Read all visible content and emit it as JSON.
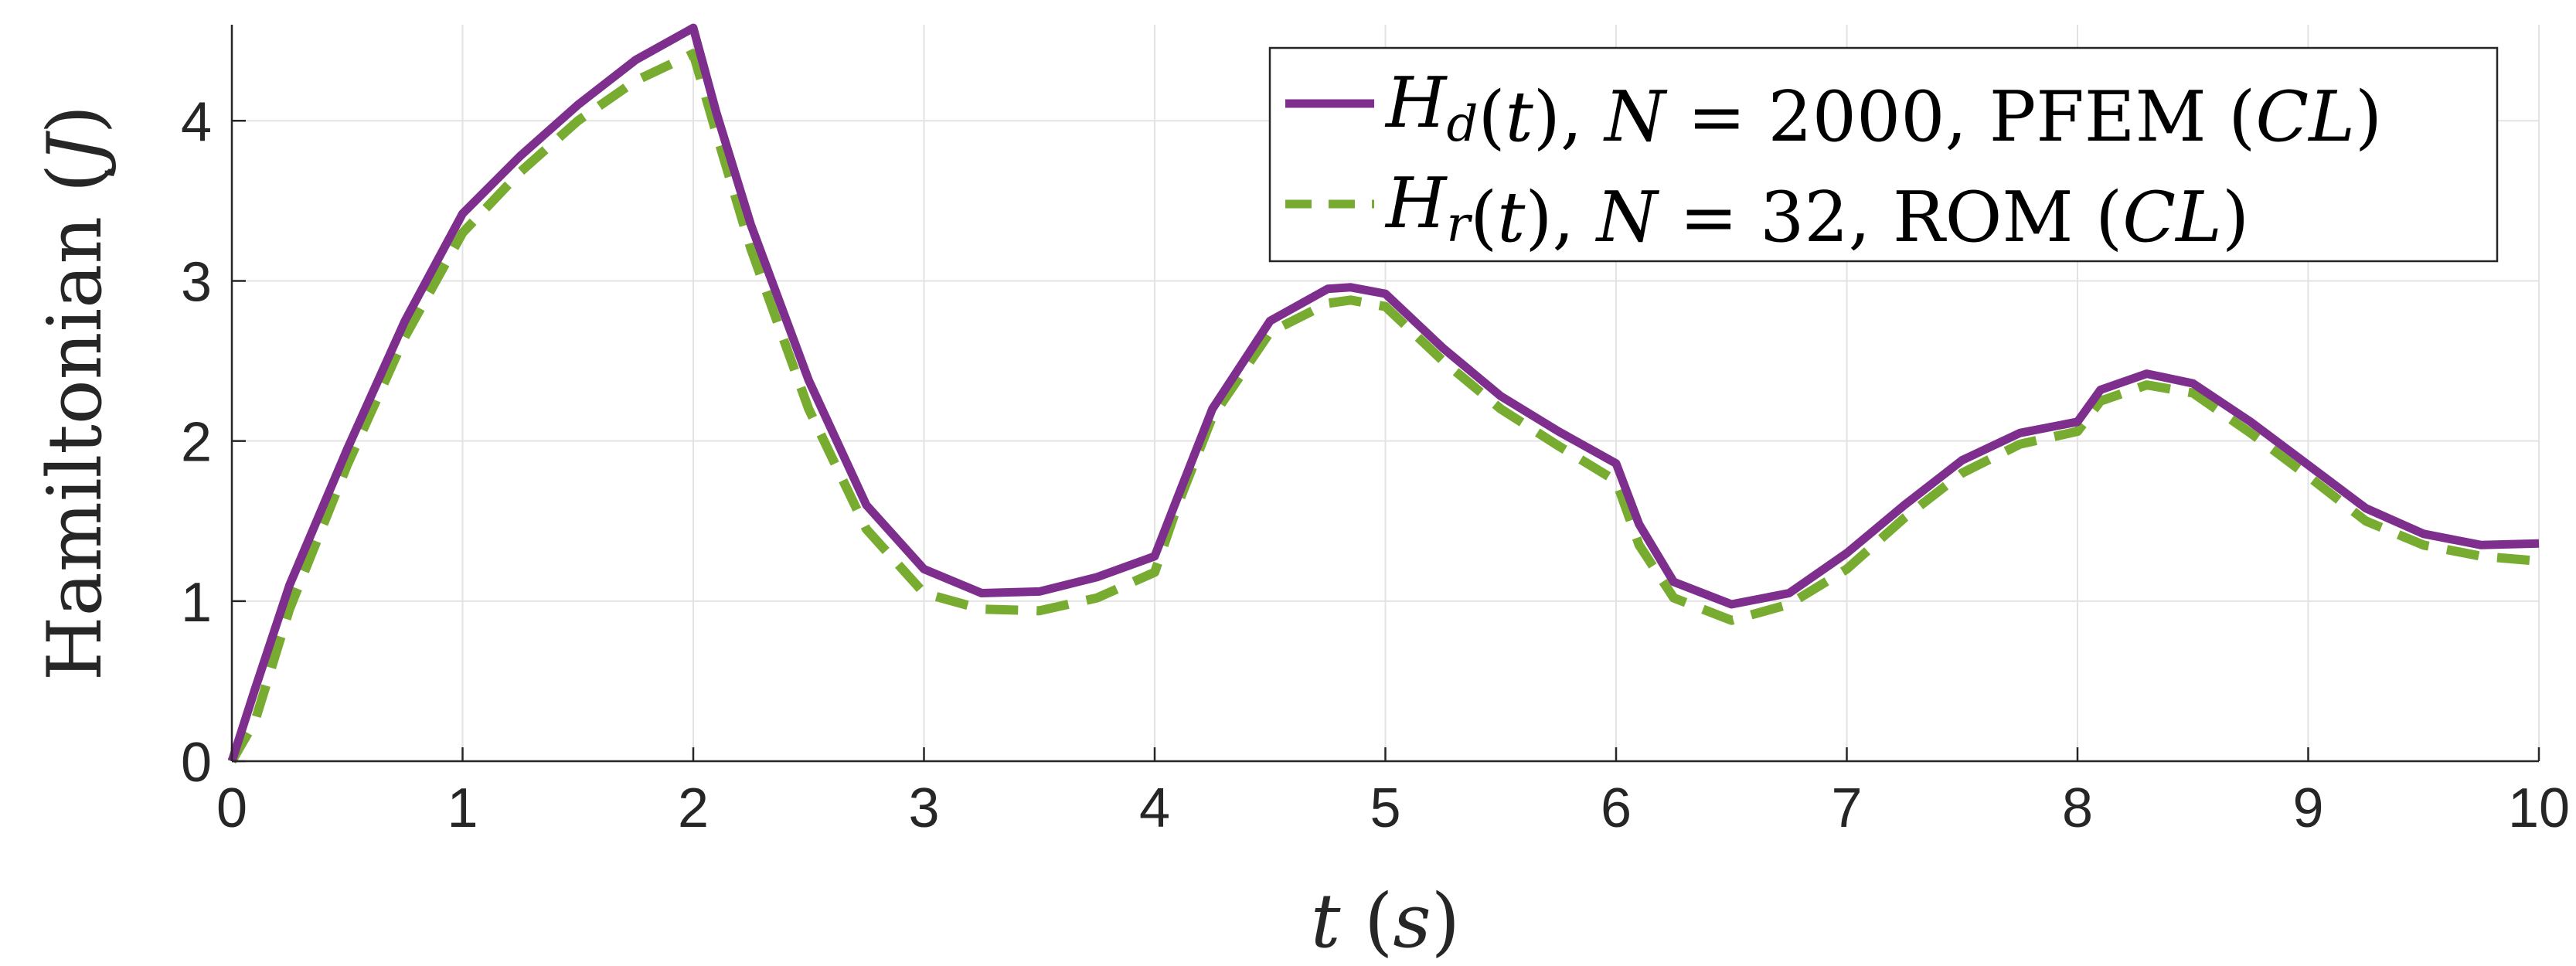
{
  "chart_data": {
    "type": "line",
    "xlabel_parts": [
      "t",
      " (",
      "s",
      ")"
    ],
    "ylabel_parts": [
      "Hamiltonian ",
      "(",
      "J",
      ")"
    ],
    "xlim": [
      0,
      10
    ],
    "ylim": [
      0,
      4.6
    ],
    "xticks": [
      0,
      1,
      2,
      3,
      4,
      5,
      6,
      7,
      8,
      9,
      10
    ],
    "yticks": [
      0,
      1,
      2,
      3,
      4
    ],
    "grid": true,
    "legend_position": "top-right",
    "series": [
      {
        "legend_parts": [
          {
            "t": "H",
            "i": true
          },
          {
            "t": "d",
            "i": true,
            "sub": true
          },
          {
            "t": "(",
            "i": false
          },
          {
            "t": "t",
            "i": true
          },
          {
            "t": "), ",
            "i": false
          },
          {
            "t": "N",
            "i": true
          },
          {
            "t": " = 2000, PFEM ",
            "i": false
          },
          {
            "t": "(",
            "i": false
          },
          {
            "t": "CL",
            "i": true
          },
          {
            "t": ")",
            "i": false
          }
        ],
        "color": "#7e2f8e",
        "style": "solid",
        "x": [
          0,
          0.1,
          0.25,
          0.5,
          0.75,
          1.0,
          1.25,
          1.5,
          1.75,
          2.0,
          2.1,
          2.25,
          2.5,
          2.75,
          3.0,
          3.25,
          3.5,
          3.75,
          4.0,
          4.1,
          4.25,
          4.5,
          4.75,
          4.85,
          5.0,
          5.25,
          5.5,
          5.75,
          6.0,
          6.1,
          6.25,
          6.5,
          6.75,
          7.0,
          7.25,
          7.5,
          7.75,
          8.0,
          8.1,
          8.3,
          8.5,
          8.75,
          9.0,
          9.25,
          9.5,
          9.75,
          10.0
        ],
        "y": [
          0.0,
          0.45,
          1.1,
          1.95,
          2.75,
          3.42,
          3.78,
          4.1,
          4.38,
          4.58,
          4.05,
          3.35,
          2.38,
          1.6,
          1.2,
          1.05,
          1.06,
          1.15,
          1.28,
          1.65,
          2.2,
          2.75,
          2.95,
          2.96,
          2.92,
          2.58,
          2.28,
          2.06,
          1.86,
          1.48,
          1.12,
          0.98,
          1.05,
          1.3,
          1.6,
          1.88,
          2.05,
          2.12,
          2.32,
          2.42,
          2.36,
          2.12,
          1.85,
          1.58,
          1.42,
          1.35,
          1.36
        ]
      },
      {
        "legend_parts": [
          {
            "t": "H",
            "i": true
          },
          {
            "t": "r",
            "i": true,
            "sub": true
          },
          {
            "t": "(",
            "i": false
          },
          {
            "t": "t",
            "i": true
          },
          {
            "t": "), ",
            "i": false
          },
          {
            "t": "N",
            "i": true
          },
          {
            "t": " = 32,   ROM   ",
            "i": false
          },
          {
            "t": "(",
            "i": false
          },
          {
            "t": "CL",
            "i": true
          },
          {
            "t": ")",
            "i": false
          }
        ],
        "color": "#77ac30",
        "style": "dashed",
        "x": [
          0,
          0.1,
          0.25,
          0.5,
          0.75,
          1.0,
          1.25,
          1.5,
          1.75,
          2.0,
          2.1,
          2.25,
          2.5,
          2.75,
          3.0,
          3.25,
          3.5,
          3.75,
          4.0,
          4.1,
          4.25,
          4.5,
          4.75,
          4.85,
          5.0,
          5.25,
          5.5,
          5.75,
          6.0,
          6.1,
          6.25,
          6.5,
          6.75,
          7.0,
          7.25,
          7.5,
          7.75,
          8.0,
          8.1,
          8.3,
          8.5,
          8.75,
          9.0,
          9.25,
          9.5,
          9.75,
          10.0
        ],
        "y": [
          0.0,
          0.25,
          0.95,
          1.85,
          2.65,
          3.3,
          3.68,
          4.0,
          4.25,
          4.42,
          3.92,
          3.2,
          2.2,
          1.45,
          1.05,
          0.95,
          0.94,
          1.02,
          1.18,
          1.6,
          2.15,
          2.68,
          2.86,
          2.88,
          2.84,
          2.5,
          2.2,
          1.97,
          1.75,
          1.35,
          1.02,
          0.88,
          0.98,
          1.2,
          1.52,
          1.8,
          1.98,
          2.06,
          2.25,
          2.35,
          2.3,
          2.05,
          1.78,
          1.5,
          1.35,
          1.28,
          1.25
        ]
      }
    ]
  }
}
